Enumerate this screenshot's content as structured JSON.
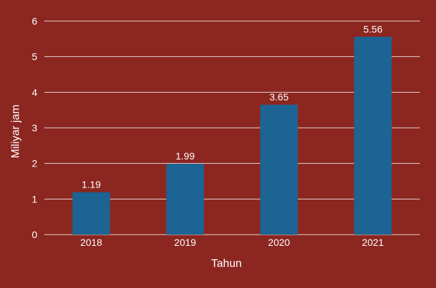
{
  "colors": {
    "background": "#8c2620",
    "bar": "#1c6494",
    "grid": "#e9d6d3",
    "text": "#ffffff"
  },
  "chart_data": {
    "type": "bar",
    "title": "",
    "xlabel": "Tahun",
    "ylabel": "Miliyar jam",
    "categories": [
      "2018",
      "2019",
      "2020",
      "2021"
    ],
    "values": [
      1.19,
      1.99,
      3.65,
      5.56
    ],
    "data_labels": [
      "1.19",
      "1.99",
      "3.65",
      "5.56"
    ],
    "yticks": [
      "0",
      "1",
      "2",
      "3",
      "4",
      "5",
      "6"
    ],
    "ylim": [
      0,
      6
    ],
    "grid": true,
    "legend": "none"
  }
}
